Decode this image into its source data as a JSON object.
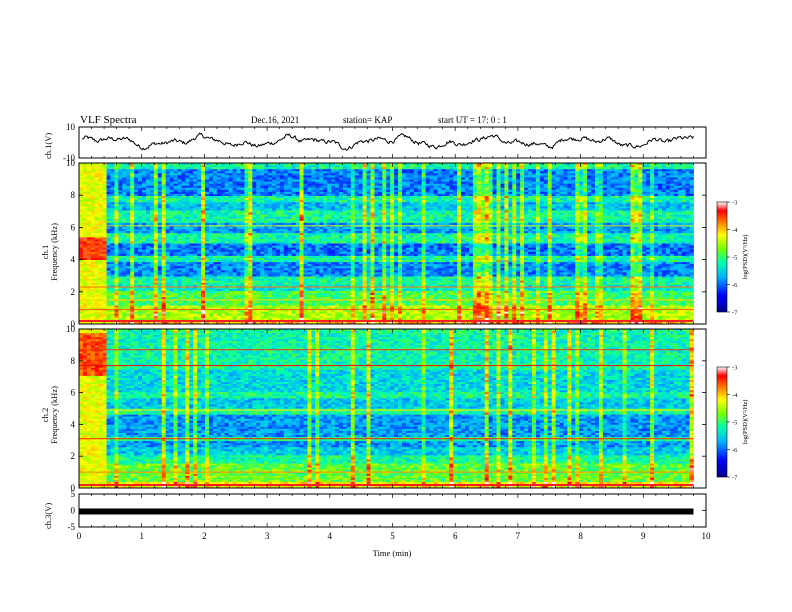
{
  "header": {
    "title": "VLF Spectra",
    "date": "Dec.16, 2021",
    "station": "station= KAP",
    "start": "start  UT  =  17: 0  : 1"
  },
  "chart_data": [
    {
      "type": "line",
      "panel": "ch1-waveform",
      "ylabel": "ch.1(V)",
      "ylim": [
        -10,
        10
      ],
      "yticks": [
        "10",
        "-10"
      ],
      "xlim": [
        0,
        10
      ],
      "note": "continuous noisy waveform oscillating roughly between -3 and +4 V with slow wave-like fluctuations"
    },
    {
      "type": "heatmap",
      "panel": "ch1-spectrogram",
      "ylabel": "ch.1\nFrequency (kHz)",
      "ylim": [
        0,
        10
      ],
      "yticks": [
        "0",
        "2",
        "4",
        "6",
        "8",
        "10"
      ],
      "xlim": [
        0,
        10
      ],
      "colorbar": {
        "label": "log(PSD)(V²/Hz)",
        "range": [
          -7,
          -3
        ],
        "ticks": [
          "-3",
          "-4",
          "-5",
          "-6",
          "-7"
        ]
      },
      "features": [
        "broadband high power (yellow/red) for t < 0.45 min",
        "strong low-frequency power near 0–1 kHz",
        "lower power (blue) bands near 3–5 kHz and 8–9.5 kHz",
        "frequent vertical impulsive sferics"
      ]
    },
    {
      "type": "heatmap",
      "panel": "ch2-spectrogram",
      "ylabel": "ch.2\nFrequency (kHz)",
      "ylim": [
        0,
        10
      ],
      "yticks": [
        "0",
        "2",
        "4",
        "6",
        "8",
        "10"
      ],
      "xlim": [
        0,
        10
      ],
      "colorbar": {
        "label": "log(PSD)(V²/Hz)",
        "range": [
          -7,
          -3
        ],
        "ticks": [
          "-3",
          "-4",
          "-5",
          "-6",
          "-7"
        ]
      },
      "features": [
        "broadband high power (yellow/red) for t < 0.45 min",
        "red narrow horizontal lines near 3.1, 7.7, 8.7 kHz",
        "lower power (blue) bands near 2.5–4.5 kHz",
        "frequent vertical impulsive sferics"
      ]
    },
    {
      "type": "line",
      "panel": "ch3-waveform",
      "ylabel": "ch.3(V)",
      "ylim": [
        -5,
        5
      ],
      "yticks": [
        "5",
        "0",
        "-5"
      ],
      "xlim": [
        0,
        10
      ],
      "xlabel": "Time (min)",
      "xticks": [
        "0",
        "1",
        "2",
        "3",
        "4",
        "5",
        "6",
        "7",
        "8",
        "9",
        "10"
      ],
      "note": "thick flat line near -0.3 V spanning roughly 0 to 9.8 min"
    }
  ],
  "colors": {
    "axis": "#000000",
    "waveform": "#000000",
    "colormap": [
      "#0000c8",
      "#0078ff",
      "#00e0ff",
      "#00ff80",
      "#a0ff00",
      "#ffff00",
      "#ff8000",
      "#ff0000",
      "#ffffff"
    ]
  }
}
